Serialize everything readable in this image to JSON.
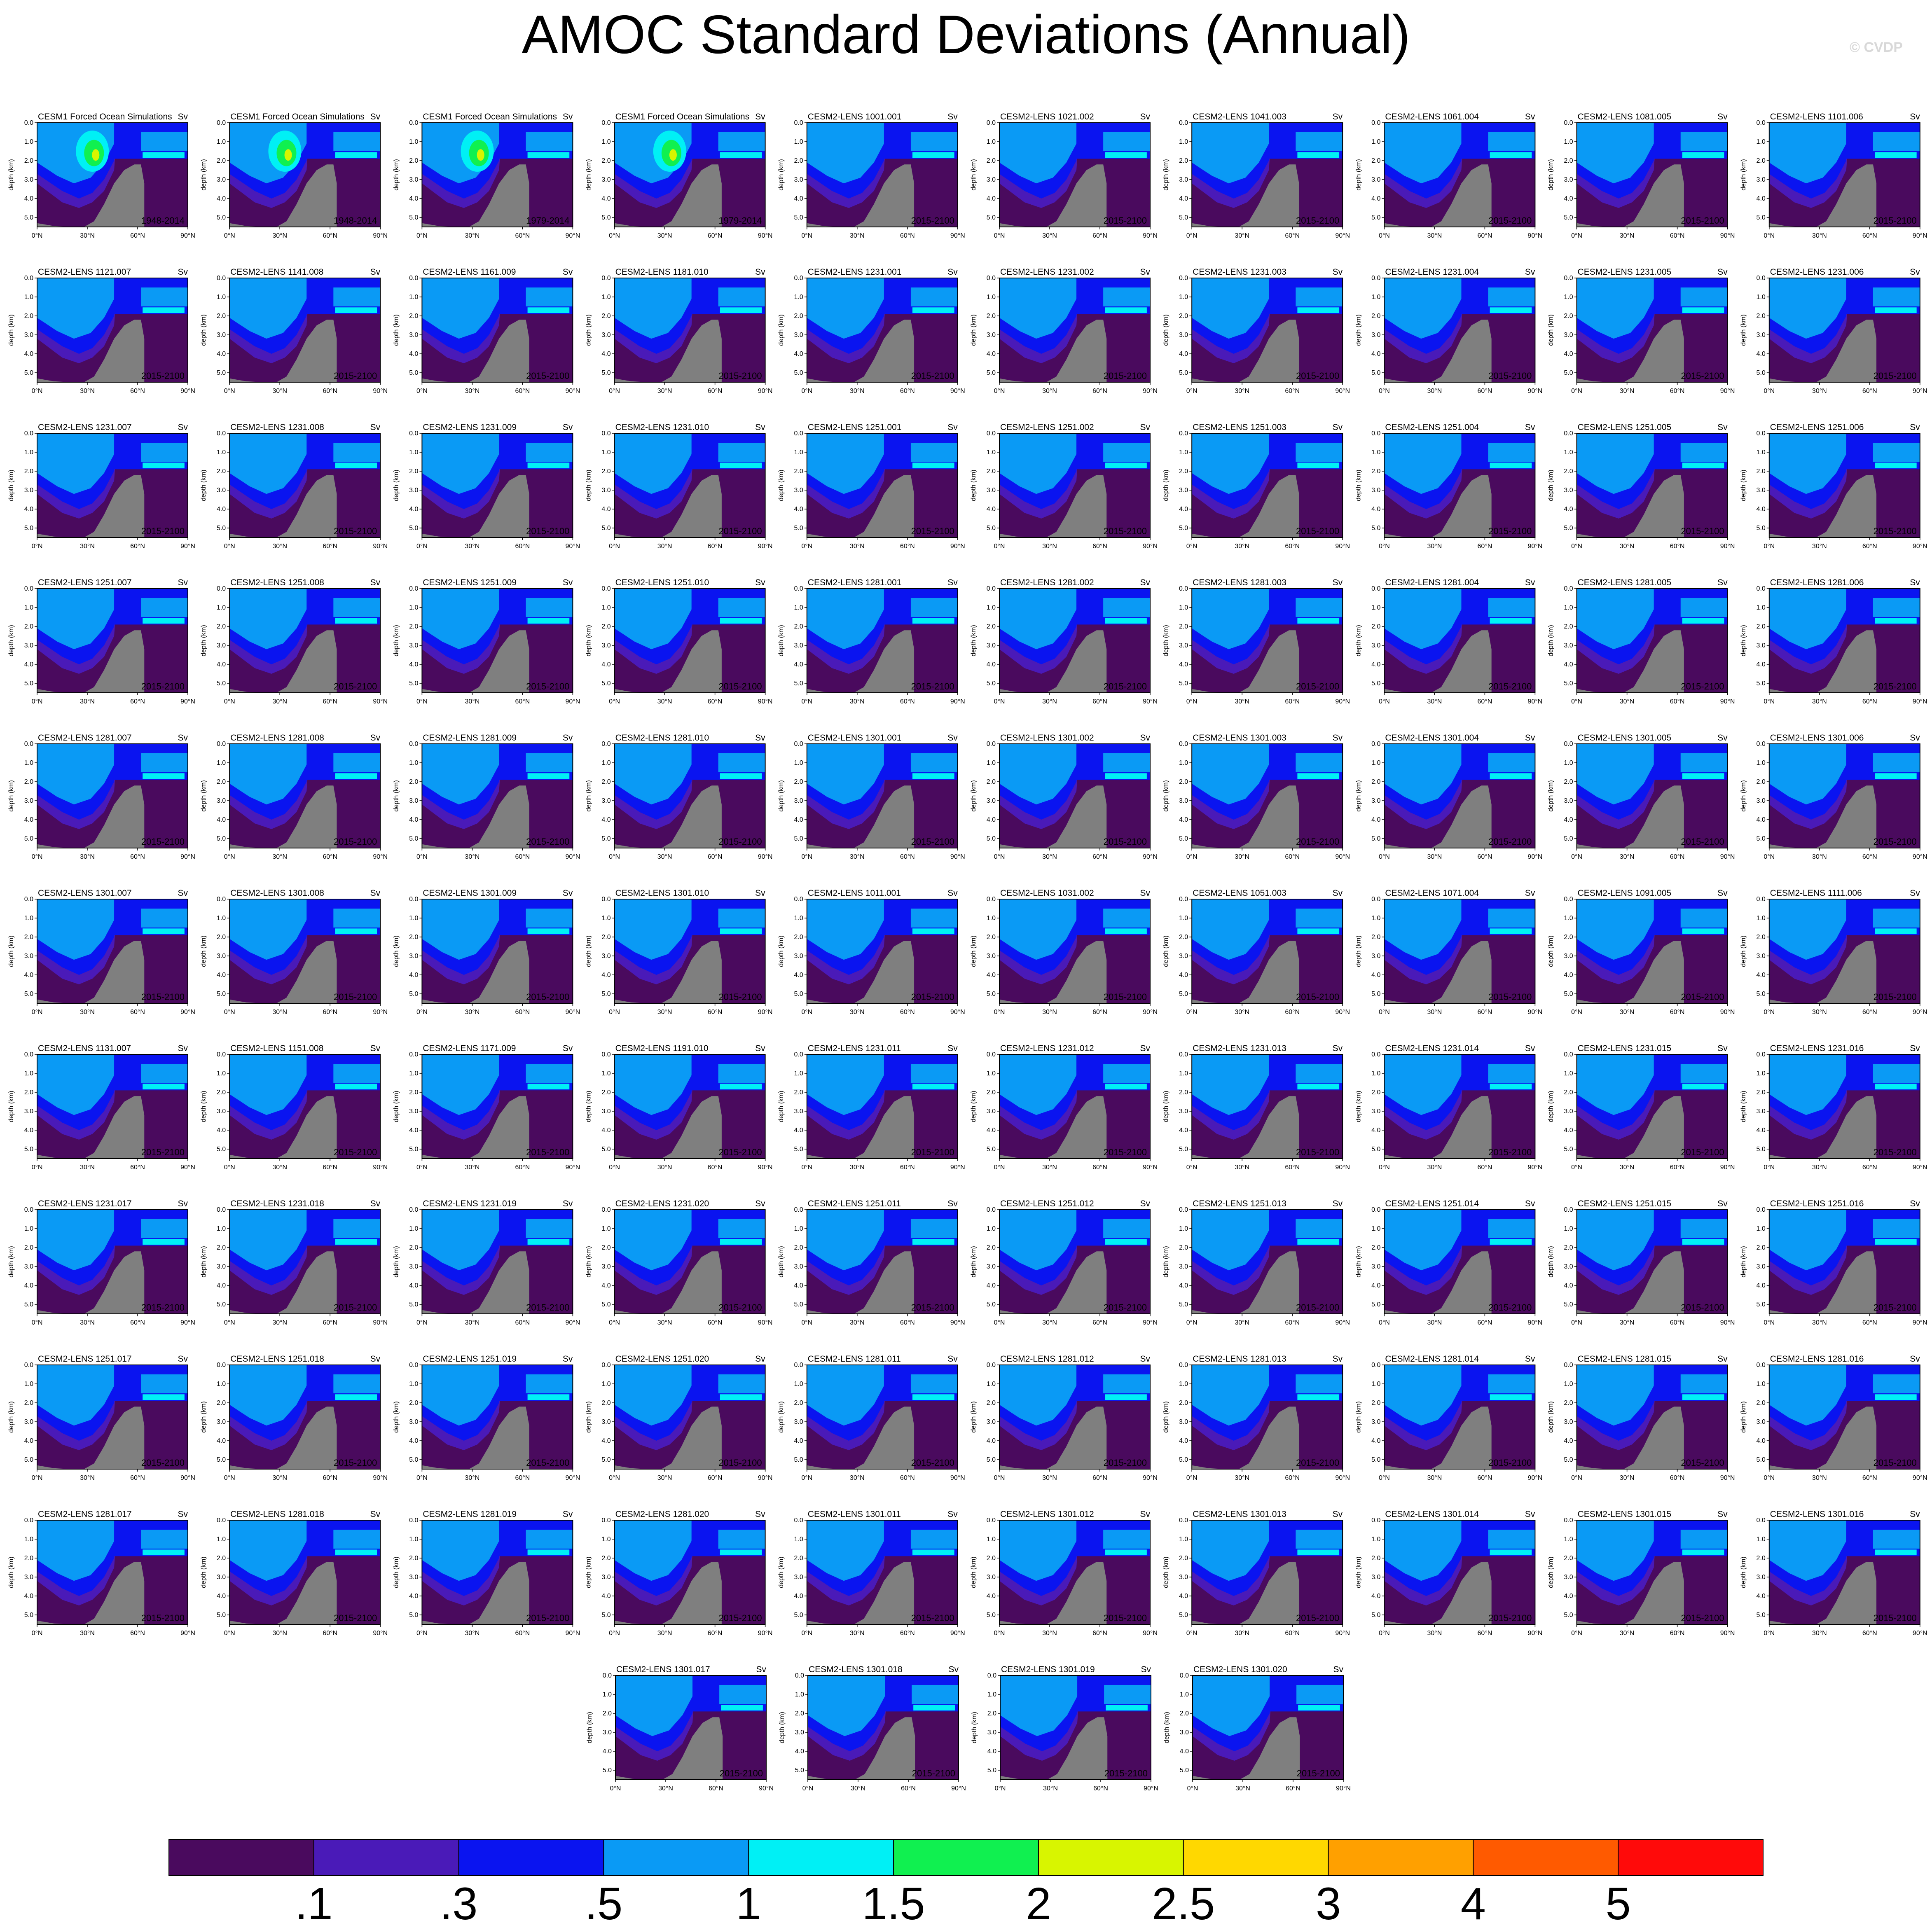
{
  "title": "AMOC Standard Deviations (Annual)",
  "credit": "© CVDP",
  "panel_style": {
    "ylabel": "depth (km)",
    "units": "Sv",
    "yticks": [
      "0.0",
      "1.0",
      "2.0",
      "3.0",
      "4.0",
      "5.0"
    ],
    "xticks": [
      "0°N",
      "30°N",
      "60°N",
      "90°N"
    ],
    "land_color": "#7f7f7f"
  },
  "chart_data": {
    "type": "heatmap",
    "x_range": [
      0,
      90
    ],
    "y_range_km": [
      0,
      5.5
    ],
    "panels": [
      {
        "title": "CESM1 Forced Ocean Simulations",
        "period": "1948-2014"
      },
      {
        "title": "CESM1 Forced Ocean Simulations",
        "period": "1948-2014"
      },
      {
        "title": "CESM1 Forced Ocean Simulations",
        "period": "1979-2014"
      },
      {
        "title": "CESM1 Forced Ocean Simulations",
        "period": "1979-2014"
      },
      {
        "title": "CESM2-LENS 1001.001",
        "period": "2015-2100"
      },
      {
        "title": "CESM2-LENS 1021.002",
        "period": "2015-2100"
      },
      {
        "title": "CESM2-LENS 1041.003",
        "period": "2015-2100"
      },
      {
        "title": "CESM2-LENS 1061.004",
        "period": "2015-2100"
      },
      {
        "title": "CESM2-LENS 1081.005",
        "period": "2015-2100"
      },
      {
        "title": "CESM2-LENS 1101.006",
        "period": "2015-2100"
      },
      {
        "title": "CESM2-LENS 1121.007",
        "period": "2015-2100"
      },
      {
        "title": "CESM2-LENS 1141.008",
        "period": "2015-2100"
      },
      {
        "title": "CESM2-LENS 1161.009",
        "period": "2015-2100"
      },
      {
        "title": "CESM2-LENS 1181.010",
        "period": "2015-2100"
      },
      {
        "title": "CESM2-LENS 1231.001",
        "period": "2015-2100"
      },
      {
        "title": "CESM2-LENS 1231.002",
        "period": "2015-2100"
      },
      {
        "title": "CESM2-LENS 1231.003",
        "period": "2015-2100"
      },
      {
        "title": "CESM2-LENS 1231.004",
        "period": "2015-2100"
      },
      {
        "title": "CESM2-LENS 1231.005",
        "period": "2015-2100"
      },
      {
        "title": "CESM2-LENS 1231.006",
        "period": "2015-2100"
      },
      {
        "title": "CESM2-LENS 1231.007",
        "period": "2015-2100"
      },
      {
        "title": "CESM2-LENS 1231.008",
        "period": "2015-2100"
      },
      {
        "title": "CESM2-LENS 1231.009",
        "period": "2015-2100"
      },
      {
        "title": "CESM2-LENS 1231.010",
        "period": "2015-2100"
      },
      {
        "title": "CESM2-LENS 1251.001",
        "period": "2015-2100"
      },
      {
        "title": "CESM2-LENS 1251.002",
        "period": "2015-2100"
      },
      {
        "title": "CESM2-LENS 1251.003",
        "period": "2015-2100"
      },
      {
        "title": "CESM2-LENS 1251.004",
        "period": "2015-2100"
      },
      {
        "title": "CESM2-LENS 1251.005",
        "period": "2015-2100"
      },
      {
        "title": "CESM2-LENS 1251.006",
        "period": "2015-2100"
      },
      {
        "title": "CESM2-LENS 1251.007",
        "period": "2015-2100"
      },
      {
        "title": "CESM2-LENS 1251.008",
        "period": "2015-2100"
      },
      {
        "title": "CESM2-LENS 1251.009",
        "period": "2015-2100"
      },
      {
        "title": "CESM2-LENS 1251.010",
        "period": "2015-2100"
      },
      {
        "title": "CESM2-LENS 1281.001",
        "period": "2015-2100"
      },
      {
        "title": "CESM2-LENS 1281.002",
        "period": "2015-2100"
      },
      {
        "title": "CESM2-LENS 1281.003",
        "period": "2015-2100"
      },
      {
        "title": "CESM2-LENS 1281.004",
        "period": "2015-2100"
      },
      {
        "title": "CESM2-LENS 1281.005",
        "period": "2015-2100"
      },
      {
        "title": "CESM2-LENS 1281.006",
        "period": "2015-2100"
      },
      {
        "title": "CESM2-LENS 1281.007",
        "period": "2015-2100"
      },
      {
        "title": "CESM2-LENS 1281.008",
        "period": "2015-2100"
      },
      {
        "title": "CESM2-LENS 1281.009",
        "period": "2015-2100"
      },
      {
        "title": "CESM2-LENS 1281.010",
        "period": "2015-2100"
      },
      {
        "title": "CESM2-LENS 1301.001",
        "period": "2015-2100"
      },
      {
        "title": "CESM2-LENS 1301.002",
        "period": "2015-2100"
      },
      {
        "title": "CESM2-LENS 1301.003",
        "period": "2015-2100"
      },
      {
        "title": "CESM2-LENS 1301.004",
        "period": "2015-2100"
      },
      {
        "title": "CESM2-LENS 1301.005",
        "period": "2015-2100"
      },
      {
        "title": "CESM2-LENS 1301.006",
        "period": "2015-2100"
      },
      {
        "title": "CESM2-LENS 1301.007",
        "period": "2015-2100"
      },
      {
        "title": "CESM2-LENS 1301.008",
        "period": "2015-2100"
      },
      {
        "title": "CESM2-LENS 1301.009",
        "period": "2015-2100"
      },
      {
        "title": "CESM2-LENS 1301.010",
        "period": "2015-2100"
      },
      {
        "title": "CESM2-LENS 1011.001",
        "period": "2015-2100"
      },
      {
        "title": "CESM2-LENS 1031.002",
        "period": "2015-2100"
      },
      {
        "title": "CESM2-LENS 1051.003",
        "period": "2015-2100"
      },
      {
        "title": "CESM2-LENS 1071.004",
        "period": "2015-2100"
      },
      {
        "title": "CESM2-LENS 1091.005",
        "period": "2015-2100"
      },
      {
        "title": "CESM2-LENS 1111.006",
        "period": "2015-2100"
      },
      {
        "title": "CESM2-LENS 1131.007",
        "period": "2015-2100"
      },
      {
        "title": "CESM2-LENS 1151.008",
        "period": "2015-2100"
      },
      {
        "title": "CESM2-LENS 1171.009",
        "period": "2015-2100"
      },
      {
        "title": "CESM2-LENS 1191.010",
        "period": "2015-2100"
      },
      {
        "title": "CESM2-LENS 1231.011",
        "period": "2015-2100"
      },
      {
        "title": "CESM2-LENS 1231.012",
        "period": "2015-2100"
      },
      {
        "title": "CESM2-LENS 1231.013",
        "period": "2015-2100"
      },
      {
        "title": "CESM2-LENS 1231.014",
        "period": "2015-2100"
      },
      {
        "title": "CESM2-LENS 1231.015",
        "period": "2015-2100"
      },
      {
        "title": "CESM2-LENS 1231.016",
        "period": "2015-2100"
      },
      {
        "title": "CESM2-LENS 1231.017",
        "period": "2015-2100"
      },
      {
        "title": "CESM2-LENS 1231.018",
        "period": "2015-2100"
      },
      {
        "title": "CESM2-LENS 1231.019",
        "period": "2015-2100"
      },
      {
        "title": "CESM2-LENS 1231.020",
        "period": "2015-2100"
      },
      {
        "title": "CESM2-LENS 1251.011",
        "period": "2015-2100"
      },
      {
        "title": "CESM2-LENS 1251.012",
        "period": "2015-2100"
      },
      {
        "title": "CESM2-LENS 1251.013",
        "period": "2015-2100"
      },
      {
        "title": "CESM2-LENS 1251.014",
        "period": "2015-2100"
      },
      {
        "title": "CESM2-LENS 1251.015",
        "period": "2015-2100"
      },
      {
        "title": "CESM2-LENS 1251.016",
        "period": "2015-2100"
      },
      {
        "title": "CESM2-LENS 1251.017",
        "period": "2015-2100"
      },
      {
        "title": "CESM2-LENS 1251.018",
        "period": "2015-2100"
      },
      {
        "title": "CESM2-LENS 1251.019",
        "period": "2015-2100"
      },
      {
        "title": "CESM2-LENS 1251.020",
        "period": "2015-2100"
      },
      {
        "title": "CESM2-LENS 1281.011",
        "period": "2015-2100"
      },
      {
        "title": "CESM2-LENS 1281.012",
        "period": "2015-2100"
      },
      {
        "title": "CESM2-LENS 1281.013",
        "period": "2015-2100"
      },
      {
        "title": "CESM2-LENS 1281.014",
        "period": "2015-2100"
      },
      {
        "title": "CESM2-LENS 1281.015",
        "period": "2015-2100"
      },
      {
        "title": "CESM2-LENS 1281.016",
        "period": "2015-2100"
      },
      {
        "title": "CESM2-LENS 1281.017",
        "period": "2015-2100"
      },
      {
        "title": "CESM2-LENS 1281.018",
        "period": "2015-2100"
      },
      {
        "title": "CESM2-LENS 1281.019",
        "period": "2015-2100"
      },
      {
        "title": "CESM2-LENS 1281.020",
        "period": "2015-2100"
      },
      {
        "title": "CESM2-LENS 1301.011",
        "period": "2015-2100"
      },
      {
        "title": "CESM2-LENS 1301.012",
        "period": "2015-2100"
      },
      {
        "title": "CESM2-LENS 1301.013",
        "period": "2015-2100"
      },
      {
        "title": "CESM2-LENS 1301.014",
        "period": "2015-2100"
      },
      {
        "title": "CESM2-LENS 1301.015",
        "period": "2015-2100"
      },
      {
        "title": "CESM2-LENS 1301.016",
        "period": "2015-2100"
      },
      {
        "title": "CESM2-LENS 1301.017",
        "period": "2015-2100"
      },
      {
        "title": "CESM2-LENS 1301.018",
        "period": "2015-2100"
      },
      {
        "title": "CESM2-LENS 1301.019",
        "period": "2015-2100"
      },
      {
        "title": "CESM2-LENS 1301.020",
        "period": "2015-2100"
      }
    ],
    "colorbar": {
      "labels": [
        ".1",
        ".3",
        ".5",
        "1",
        "1.5",
        "2",
        "2.5",
        "3",
        "4",
        "5"
      ],
      "colors": [
        "#4a0a5e",
        "#4a1ab8",
        "#0a14f0",
        "#0a9af5",
        "#00f0f5",
        "#10f050",
        "#d8f500",
        "#ffd800",
        "#ffa000",
        "#ff5a00",
        "#ff0a0a"
      ]
    }
  }
}
